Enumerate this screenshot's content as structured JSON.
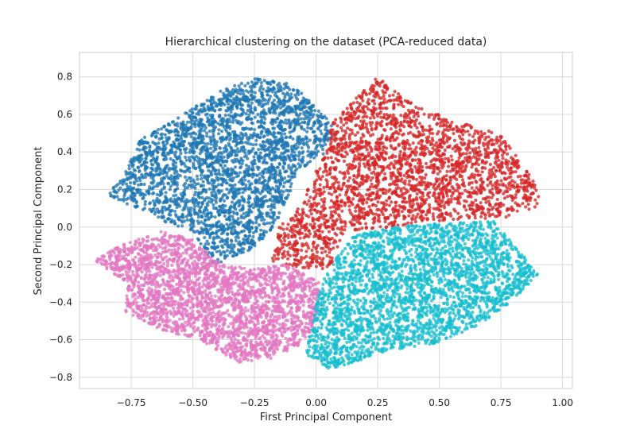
{
  "chart_data": {
    "type": "scatter",
    "title": "Hierarchical clustering on the dataset (PCA-reduced data)",
    "xlabel": "First Principal Component",
    "ylabel": "Second Principal Component",
    "xlim": [
      -0.96,
      1.04
    ],
    "ylim": [
      -0.86,
      0.93
    ],
    "xticks": [
      -0.75,
      -0.5,
      -0.25,
      0.0,
      0.25,
      0.5,
      0.75,
      1.0
    ],
    "xtick_labels": [
      "−0.75",
      "−0.50",
      "−0.25",
      "0.00",
      "0.25",
      "0.50",
      "0.75",
      "1.00"
    ],
    "yticks": [
      -0.8,
      -0.6,
      -0.4,
      -0.2,
      0.0,
      0.2,
      0.4,
      0.6,
      0.8
    ],
    "ytick_labels": [
      "−0.8",
      "−0.6",
      "−0.4",
      "−0.2",
      "0.0",
      "0.2",
      "0.4",
      "0.6",
      "0.8"
    ],
    "grid": true,
    "legend": "none",
    "clusters": [
      {
        "color": "#1f77b4",
        "points_approx": 3000,
        "region": {
          "x": [
            -0.86,
            0.08
          ],
          "y": [
            -0.24,
            0.83
          ]
        },
        "shape": [
          [
            -0.86,
            0.17
          ],
          [
            -0.78,
            0.27
          ],
          [
            -0.72,
            0.46
          ],
          [
            -0.6,
            0.55
          ],
          [
            -0.48,
            0.65
          ],
          [
            -0.37,
            0.74
          ],
          [
            -0.24,
            0.8
          ],
          [
            -0.1,
            0.76
          ],
          [
            0.02,
            0.62
          ],
          [
            0.08,
            0.52
          ],
          [
            0.03,
            0.38
          ],
          [
            -0.08,
            0.3
          ],
          [
            -0.12,
            0.12
          ],
          [
            -0.2,
            -0.05
          ],
          [
            -0.3,
            -0.15
          ],
          [
            -0.42,
            -0.2
          ],
          [
            -0.5,
            -0.02
          ],
          [
            -0.6,
            0.02
          ],
          [
            -0.72,
            0.1
          ]
        ]
      },
      {
        "color": "#d62728",
        "points_approx": 2600,
        "region": {
          "x": [
            -0.18,
            0.94
          ],
          "y": [
            -0.27,
            0.85
          ]
        },
        "shape": [
          [
            0.06,
            0.55
          ],
          [
            0.2,
            0.74
          ],
          [
            0.25,
            0.8
          ],
          [
            0.4,
            0.65
          ],
          [
            0.6,
            0.55
          ],
          [
            0.75,
            0.5
          ],
          [
            0.88,
            0.25
          ],
          [
            0.92,
            0.12
          ],
          [
            0.78,
            0.05
          ],
          [
            0.6,
            0.04
          ],
          [
            0.45,
            0.03
          ],
          [
            0.3,
            0.0
          ],
          [
            0.12,
            -0.02
          ],
          [
            0.05,
            -0.23
          ],
          [
            -0.05,
            -0.22
          ],
          [
            -0.18,
            -0.18
          ],
          [
            -0.15,
            0.0
          ],
          [
            -0.05,
            0.15
          ],
          [
            0.0,
            0.3
          ],
          [
            0.05,
            0.42
          ]
        ]
      },
      {
        "color": "#e377c2",
        "points_approx": 2700,
        "region": {
          "x": [
            -0.9,
            0.04
          ],
          "y": [
            -0.72,
            0.0
          ]
        },
        "shape": [
          [
            -0.9,
            -0.18
          ],
          [
            -0.8,
            -0.1
          ],
          [
            -0.62,
            -0.02
          ],
          [
            -0.5,
            -0.07
          ],
          [
            -0.38,
            -0.2
          ],
          [
            -0.25,
            -0.22
          ],
          [
            -0.12,
            -0.2
          ],
          [
            0.02,
            -0.3
          ],
          [
            0.0,
            -0.5
          ],
          [
            -0.05,
            -0.62
          ],
          [
            -0.18,
            -0.7
          ],
          [
            -0.32,
            -0.72
          ],
          [
            -0.48,
            -0.6
          ],
          [
            -0.62,
            -0.55
          ],
          [
            -0.78,
            -0.45
          ],
          [
            -0.76,
            -0.3
          ]
        ]
      },
      {
        "color": "#17becf",
        "points_approx": 3000,
        "region": {
          "x": [
            -0.04,
            0.92
          ],
          "y": [
            -0.78,
            0.08
          ]
        },
        "shape": [
          [
            0.05,
            -0.22
          ],
          [
            0.15,
            -0.05
          ],
          [
            0.3,
            0.0
          ],
          [
            0.5,
            0.02
          ],
          [
            0.72,
            0.03
          ],
          [
            0.82,
            -0.12
          ],
          [
            0.9,
            -0.25
          ],
          [
            0.85,
            -0.32
          ],
          [
            0.75,
            -0.45
          ],
          [
            0.62,
            -0.55
          ],
          [
            0.48,
            -0.62
          ],
          [
            0.3,
            -0.66
          ],
          [
            0.15,
            -0.72
          ],
          [
            0.05,
            -0.76
          ],
          [
            -0.04,
            -0.68
          ],
          [
            -0.02,
            -0.52
          ],
          [
            0.0,
            -0.38
          ]
        ]
      }
    ]
  }
}
